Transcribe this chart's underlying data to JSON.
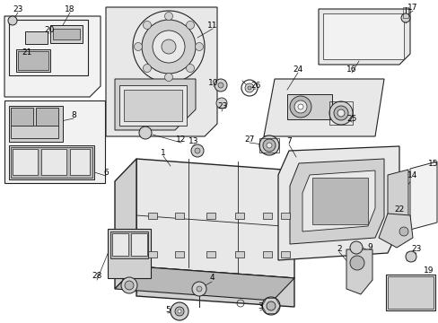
{
  "bg": "#ffffff",
  "lc": "#222222",
  "gray1": "#e8e8e8",
  "gray2": "#d0d0d0",
  "gray3": "#b8b8b8",
  "gray4": "#f2f2f2",
  "fs": 6.5
}
